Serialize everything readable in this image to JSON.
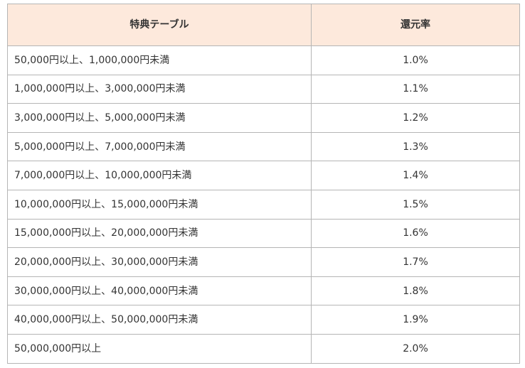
{
  "table": {
    "headers": [
      "特典テーブル",
      "還元率"
    ],
    "rows": [
      {
        "range": "50,000円以上、1,000,000円未満",
        "rate": "1.0%"
      },
      {
        "range": "1,000,000円以上、3,000,000円未満",
        "rate": "1.1%"
      },
      {
        "range": "3,000,000円以上、5,000,000円未満",
        "rate": "1.2%"
      },
      {
        "range": "5,000,000円以上、7,000,000円未満",
        "rate": "1.3%"
      },
      {
        "range": "7,000,000円以上、10,000,000円未満",
        "rate": "1.4%"
      },
      {
        "range": "10,000,000円以上、15,000,000円未満",
        "rate": "1.5%"
      },
      {
        "range": "15,000,000円以上、20,000,000円未満",
        "rate": "1.6%"
      },
      {
        "range": "20,000,000円以上、30,000,000円未満",
        "rate": "1.7%"
      },
      {
        "range": "30,000,000円以上、40,000,000円未満",
        "rate": "1.8%"
      },
      {
        "range": "40,000,000円以上、50,000,000円未満",
        "rate": "1.9%"
      },
      {
        "range": "50,000,000円以上",
        "rate": "2.0%"
      }
    ]
  }
}
